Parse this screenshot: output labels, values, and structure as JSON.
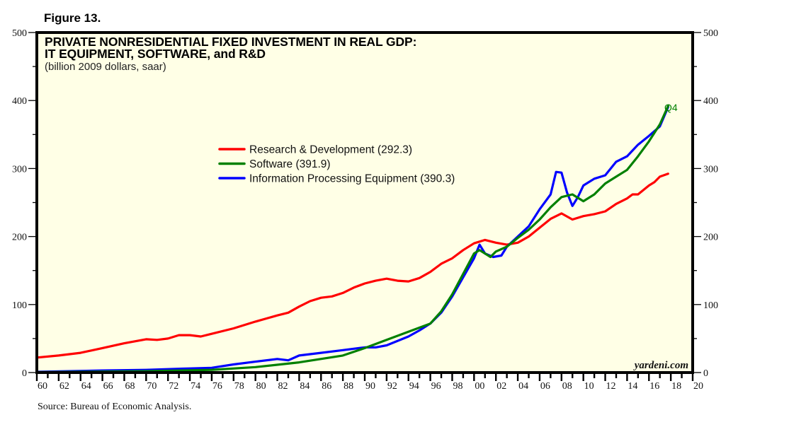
{
  "figure_label": "Figure 13.",
  "source": "Source: Bureau of Economic Analysis.",
  "watermark": "yardeni.com",
  "colors": {
    "background": "#ffffe6",
    "frame": "#000000",
    "rd": "#ff0000",
    "software": "#008000",
    "ipe": "#0000ff"
  },
  "chart_data": {
    "type": "line",
    "title": "PRIVATE NONRESIDENTIAL FIXED INVESTMENT IN REAL GDP:",
    "title_line2": "IT EQUIPMENT, SOFTWARE, and R&D",
    "subtitle": "(billion 2009 dollars, saar)",
    "xlabel": "",
    "ylabel": "",
    "xlim": [
      1960,
      2020
    ],
    "ylim": [
      0,
      500
    ],
    "y_ticks": [
      0,
      100,
      200,
      300,
      400,
      500
    ],
    "y_tick_labels": [
      "0",
      "100",
      "200",
      "300",
      "400",
      "500"
    ],
    "y_minor_ticks": [
      50,
      150,
      250,
      350,
      450
    ],
    "x_ticks": [
      1960,
      1962,
      1964,
      1966,
      1968,
      1970,
      1972,
      1974,
      1976,
      1978,
      1980,
      1982,
      1984,
      1986,
      1988,
      1990,
      1992,
      1994,
      1996,
      1998,
      2000,
      2002,
      2004,
      2006,
      2008,
      2010,
      2012,
      2014,
      2016,
      2018,
      2020
    ],
    "x_tick_labels": [
      "60",
      "62",
      "64",
      "66",
      "68",
      "70",
      "72",
      "74",
      "76",
      "78",
      "80",
      "82",
      "84",
      "86",
      "88",
      "90",
      "92",
      "94",
      "96",
      "98",
      "00",
      "02",
      "04",
      "06",
      "08",
      "10",
      "12",
      "14",
      "16",
      "18",
      "20"
    ],
    "grid": false,
    "legend_position": "center-left",
    "annotation": "Q4",
    "series": [
      {
        "name": "Research & Development (292.3)",
        "key": "rd",
        "x": [
          1960,
          1962,
          1964,
          1966,
          1968,
          1970,
          1971,
          1972,
          1973,
          1974,
          1975,
          1976,
          1978,
          1980,
          1982,
          1983,
          1984,
          1985,
          1986,
          1987,
          1988,
          1989,
          1990,
          1991,
          1992,
          1993,
          1994,
          1995,
          1996,
          1997,
          1998,
          1999,
          2000,
          2001,
          2002,
          2003,
          2004,
          2005,
          2006,
          2007,
          2008,
          2009,
          2010,
          2011,
          2012,
          2013,
          2014,
          2014.5,
          2015,
          2016,
          2016.5,
          2017,
          2017.75
        ],
        "values": [
          22,
          25,
          29,
          36,
          43,
          49,
          48,
          50,
          55,
          55,
          53,
          57,
          65,
          75,
          84,
          88,
          97,
          105,
          110,
          112,
          117,
          125,
          131,
          135,
          138,
          135,
          134,
          139,
          148,
          160,
          168,
          180,
          190,
          195,
          191,
          188,
          191,
          200,
          213,
          226,
          234,
          225,
          230,
          233,
          237,
          248,
          256,
          262,
          262,
          275,
          280,
          288,
          292.3
        ]
      },
      {
        "name": "Software (391.9)",
        "key": "software",
        "x": [
          1960,
          1970,
          1976,
          1980,
          1984,
          1988,
          1990,
          1992,
          1994,
          1996,
          1997,
          1998,
          1999,
          2000,
          2000.5,
          2001,
          2001.5,
          2002,
          2003,
          2004,
          2005,
          2006,
          2007,
          2008,
          2009,
          2010,
          2011,
          2012,
          2013,
          2014,
          2015,
          2016,
          2017,
          2017.75
        ],
        "values": [
          0.5,
          2,
          4,
          8,
          15,
          25,
          36,
          48,
          60,
          72,
          90,
          115,
          145,
          175,
          180,
          175,
          170,
          178,
          185,
          198,
          210,
          225,
          243,
          258,
          262,
          252,
          262,
          278,
          288,
          298,
          318,
          340,
          365,
          391.9
        ]
      },
      {
        "name": "Information Processing Equipment (390.3)",
        "key": "ipe",
        "x": [
          1960,
          1966,
          1970,
          1974,
          1976,
          1978,
          1980,
          1982,
          1983,
          1984,
          1986,
          1988,
          1990,
          1991,
          1992,
          1994,
          1995,
          1996,
          1997,
          1998,
          1999,
          2000,
          2000.5,
          2001,
          2001.75,
          2002.5,
          2003,
          2004,
          2005,
          2006,
          2007,
          2007.5,
          2008,
          2008.5,
          2009,
          2009.5,
          2010,
          2011,
          2012,
          2013,
          2014,
          2015,
          2016,
          2017,
          2017.75
        ],
        "values": [
          1,
          3,
          4,
          6,
          7,
          12,
          16,
          20,
          18,
          25,
          29,
          33,
          37,
          37,
          40,
          53,
          62,
          72,
          88,
          112,
          140,
          168,
          188,
          175,
          170,
          172,
          185,
          200,
          215,
          240,
          262,
          295,
          294,
          265,
          245,
          258,
          275,
          285,
          290,
          310,
          318,
          335,
          348,
          362,
          390.3
        ]
      }
    ]
  }
}
